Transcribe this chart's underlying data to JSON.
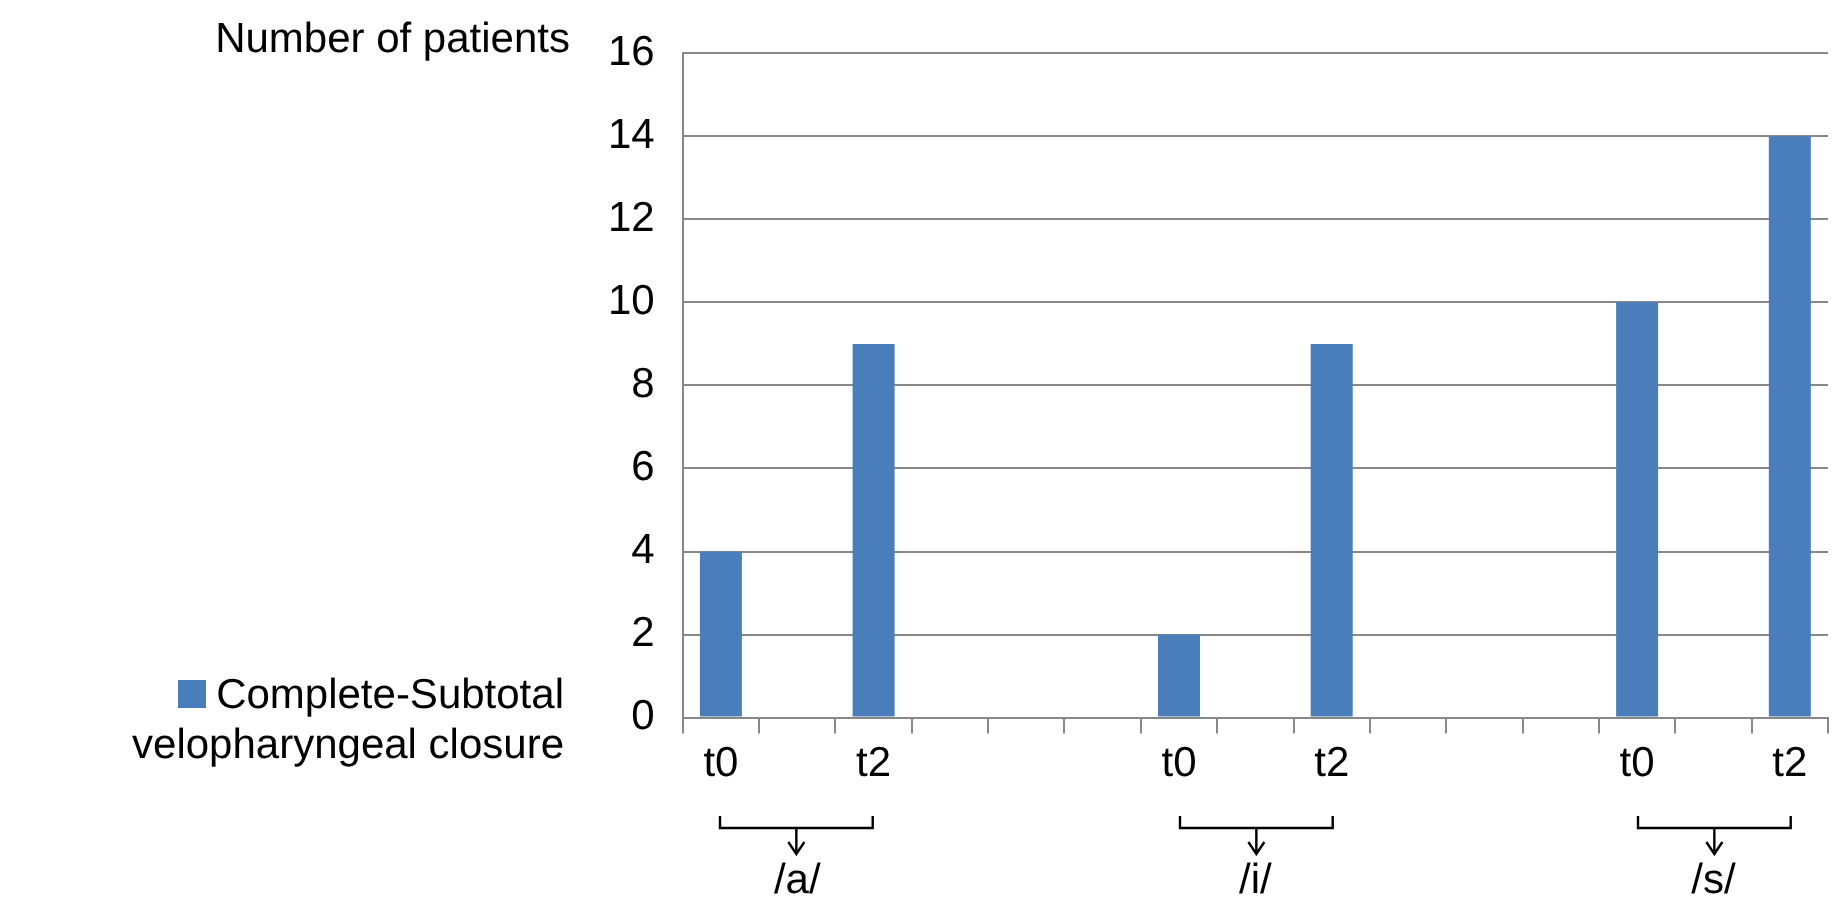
{
  "chart_data": {
    "type": "bar",
    "ylabel": "Number of patients",
    "categories": [
      "t0",
      null,
      "t2",
      null,
      null,
      null,
      "t0",
      null,
      "t2",
      null,
      null,
      null,
      "t0",
      null,
      "t2"
    ],
    "series": [
      {
        "name": "Complete-Subtotal velopharyngeal closure",
        "color": "#4a7ebb",
        "values": [
          4,
          null,
          9,
          null,
          null,
          null,
          2,
          null,
          9,
          null,
          null,
          null,
          10,
          null,
          14
        ]
      }
    ],
    "ylim": [
      0,
      16
    ],
    "yticks": [
      0,
      2,
      4,
      6,
      8,
      10,
      12,
      14,
      16
    ],
    "grid": "y",
    "legend": "left",
    "annotations": [
      "/a/",
      "/i/",
      "/s/"
    ]
  }
}
